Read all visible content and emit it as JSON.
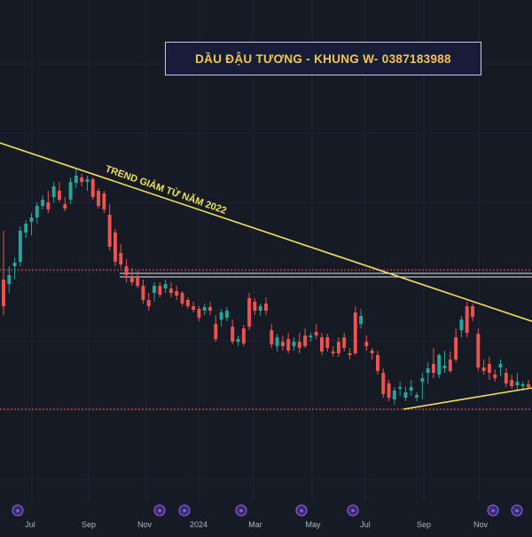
{
  "title": "DẦU ĐẬU TƯƠNG - KHUNG W- 0387183988",
  "annotation": "TREND GIẢM TỪ NĂM 2022",
  "x_axis": {
    "labels": [
      "Jul",
      "Sep",
      "Nov",
      "2024",
      "Mar",
      "May",
      "Jul",
      "Sep",
      "Nov"
    ]
  },
  "colors": {
    "background": "#161a25",
    "up": "#26a69a",
    "down": "#ef5350",
    "trendline": "#f1e15d",
    "title_text": "#f2c84b",
    "title_bg": "#171c38"
  },
  "event_marker_icon": "dividend-event-icon",
  "chart_data": {
    "type": "candlestick",
    "timeframe": "weekly",
    "title": "DẦU ĐẬU TƯƠNG - KHUNG W- 0387183988",
    "ylim": [
      0,
      600
    ],
    "y_axis_shown": false,
    "grid": true,
    "candles": [
      [
        315,
        260,
        355,
        345
      ],
      [
        320,
        300,
        330,
        310
      ],
      [
        300,
        290,
        315,
        296
      ],
      [
        295,
        255,
        300,
        260
      ],
      [
        262,
        248,
        268,
        252
      ],
      [
        250,
        240,
        265,
        245
      ],
      [
        245,
        228,
        252,
        232
      ],
      [
        232,
        220,
        236,
        225
      ],
      [
        228,
        215,
        240,
        236
      ],
      [
        222,
        205,
        228,
        210
      ],
      [
        215,
        205,
        228,
        225
      ],
      [
        230,
        222,
        238,
        235
      ],
      [
        225,
        200,
        230,
        205
      ],
      [
        206,
        190,
        212,
        198
      ],
      [
        200,
        196,
        210,
        205
      ],
      [
        205,
        198,
        215,
        202
      ],
      [
        202,
        200,
        225,
        222
      ],
      [
        215,
        212,
        235,
        232
      ],
      [
        218,
        215,
        240,
        236
      ],
      [
        242,
        230,
        282,
        278
      ],
      [
        262,
        258,
        300,
        295
      ],
      [
        285,
        275,
        302,
        298
      ],
      [
        300,
        292,
        318,
        310
      ],
      [
        312,
        302,
        322,
        318
      ],
      [
        312,
        305,
        325,
        322
      ],
      [
        322,
        315,
        342,
        338
      ],
      [
        338,
        330,
        350,
        345
      ],
      [
        330,
        318,
        340,
        322
      ],
      [
        322,
        318,
        335,
        332
      ],
      [
        325,
        315,
        330,
        320
      ],
      [
        325,
        318,
        335,
        330
      ],
      [
        328,
        322,
        338,
        333
      ],
      [
        330,
        328,
        345,
        342
      ],
      [
        338,
        335,
        348,
        345
      ],
      [
        345,
        340,
        352,
        349
      ],
      [
        348,
        345,
        362,
        358
      ],
      [
        350,
        342,
        355,
        346
      ],
      [
        346,
        340,
        355,
        350
      ],
      [
        365,
        355,
        385,
        382
      ],
      [
        360,
        348,
        368,
        352
      ],
      [
        358,
        346,
        362,
        350
      ],
      [
        368,
        360,
        388,
        385
      ],
      [
        385,
        378,
        390,
        382
      ],
      [
        370,
        366,
        390,
        387
      ],
      [
        336,
        330,
        372,
        368
      ],
      [
        340,
        336,
        355,
        350
      ],
      [
        350,
        342,
        356,
        345
      ],
      [
        342,
        335,
        355,
        350
      ],
      [
        372,
        365,
        392,
        388
      ],
      [
        390,
        376,
        396,
        380
      ],
      [
        385,
        378,
        395,
        390
      ],
      [
        382,
        375,
        398,
        395
      ],
      [
        390,
        380,
        395,
        385
      ],
      [
        385,
        375,
        398,
        392
      ],
      [
        378,
        370,
        392,
        390
      ],
      [
        380,
        375,
        385,
        378
      ],
      [
        374,
        365,
        382,
        378
      ],
      [
        380,
        375,
        400,
        396
      ],
      [
        380,
        376,
        396,
        392
      ],
      [
        396,
        390,
        402,
        398
      ],
      [
        385,
        380,
        402,
        398
      ],
      [
        380,
        375,
        396,
        392
      ],
      [
        398,
        392,
        405,
        400
      ],
      [
        352,
        345,
        400,
        398
      ],
      [
        365,
        348,
        370,
        356
      ],
      [
        385,
        378,
        395,
        390
      ],
      [
        395,
        392,
        405,
        398
      ],
      [
        400,
        395,
        422,
        418
      ],
      [
        420,
        415,
        448,
        444
      ],
      [
        432,
        428,
        452,
        448
      ],
      [
        450,
        436,
        456,
        440
      ],
      [
        438,
        430,
        446,
        436
      ],
      [
        448,
        436,
        452,
        442
      ],
      [
        440,
        428,
        446,
        436
      ],
      [
        448,
        442,
        452,
        445
      ],
      [
        430,
        420,
        450,
        426
      ],
      [
        420,
        408,
        432,
        415
      ],
      [
        410,
        392,
        426,
        420
      ],
      [
        422,
        398,
        426,
        400
      ],
      [
        415,
        395,
        420,
        412
      ],
      [
        405,
        396,
        420,
        418
      ],
      [
        380,
        370,
        408,
        405
      ],
      [
        372,
        356,
        380,
        360
      ],
      [
        345,
        340,
        380,
        375
      ],
      [
        345,
        342,
        362,
        357
      ],
      [
        376,
        370,
        418,
        414
      ],
      [
        414,
        405,
        422,
        418
      ],
      [
        410,
        402,
        428,
        420
      ],
      [
        422,
        416,
        430,
        426
      ],
      [
        414,
        405,
        424,
        410
      ],
      [
        420,
        415,
        436,
        432
      ],
      [
        428,
        422,
        438,
        435
      ],
      [
        434,
        420,
        440,
        430
      ],
      [
        435,
        430,
        440,
        433
      ],
      [
        433,
        428,
        438,
        436
      ]
    ],
    "trendlines": [
      {
        "label": "TREND GIẢM TỪ NĂM 2022",
        "from": [
          0,
          161
        ],
        "to": [
          600,
          362
        ]
      },
      {
        "label": "",
        "from": [
          455,
          461
        ],
        "to": [
          600,
          437
        ]
      }
    ],
    "horizontal_levels": [
      304,
      308,
      312
    ],
    "event_markers_at_label_positions": [
      0,
      2,
      3,
      4,
      5,
      6,
      8
    ]
  }
}
